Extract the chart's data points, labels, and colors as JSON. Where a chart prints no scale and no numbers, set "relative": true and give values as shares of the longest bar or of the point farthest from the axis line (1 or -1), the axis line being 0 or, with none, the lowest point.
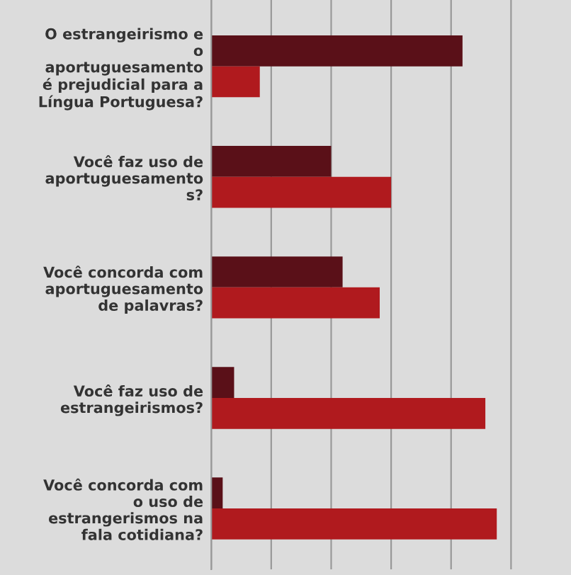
{
  "chart_data": {
    "type": "bar",
    "orientation": "horizontal",
    "relative": true,
    "grid": "x",
    "categories": [
      "O estrangeirismo e\no\naportuguesamento\né prejudicial para a\nLíngua Portuguesa?",
      "Você faz uso de\naportuguesamento\ns?",
      "Você concorda com\naportuguesamento\nde palavras?",
      "Você faz uso de\nestrangeirismos?",
      "Você concorda com\no uso de\nestrangerismos na\nfala cotidiana?"
    ],
    "series": [
      {
        "color": "#5a1018",
        "values": [
          0.88,
          0.42,
          0.46,
          0.08,
          0.04
        ]
      },
      {
        "color": "#b01a1e",
        "values": [
          0.17,
          0.63,
          0.59,
          0.96,
          1.0
        ]
      }
    ]
  }
}
